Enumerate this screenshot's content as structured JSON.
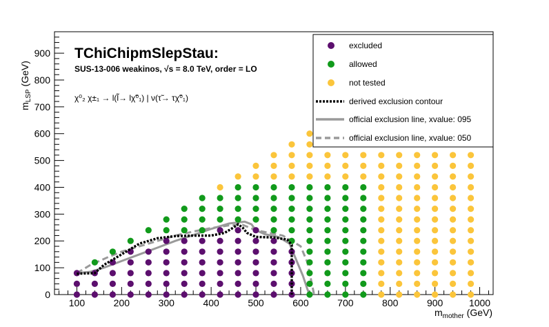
{
  "chart_data": {
    "type": "scatter",
    "title": "TChiChipmSlepStau:",
    "subtitle": "SUS-13-006  weakinos,  √s =  8.0 TeV, order =  LO",
    "process_label": "χ⁰₂ χ±₁  → l(l̃→ lχ̃⁰₁) | ν(τ̃→ τχ̃⁰₁)",
    "xlabel": "m_mother (GeV)",
    "xlabel_main": "m",
    "xlabel_sub": "mother",
    "xlabel_unit": " (GeV)",
    "ylabel": "m_LSP (GeV)",
    "ylabel_main": "m",
    "ylabel_sub": "LSP",
    "ylabel_unit": " (GeV)",
    "xlim": [
      50,
      1030
    ],
    "ylim": [
      0,
      980
    ],
    "xticks": [
      100,
      200,
      300,
      400,
      500,
      600,
      700,
      800,
      900,
      1000
    ],
    "yticks": [
      0,
      100,
      200,
      300,
      400,
      500,
      600,
      700,
      800,
      900
    ],
    "legend_position": "top-right",
    "legend": [
      {
        "label": "excluded",
        "kind": "marker",
        "color": "#5c0f6e"
      },
      {
        "label": "allowed",
        "kind": "marker",
        "color": "#119a1b"
      },
      {
        "label": "not tested",
        "kind": "marker",
        "color": "#fbc53b"
      },
      {
        "label": "derived exclusion contour",
        "kind": "line",
        "color": "#000000",
        "dash": "dotted"
      },
      {
        "label": " official exclusion line, xvalue: 095",
        "kind": "line",
        "color": "#9a9a9a",
        "dash": "solid"
      },
      {
        "label": " official exclusion line, xvalue: 050",
        "kind": "line",
        "color": "#9a9a9a",
        "dash": "dashed"
      }
    ],
    "points": {
      "excluded": [
        [
          100,
          0
        ],
        [
          100,
          40
        ],
        [
          100,
          80
        ],
        [
          140,
          0
        ],
        [
          140,
          40
        ],
        [
          140,
          80
        ],
        [
          180,
          0
        ],
        [
          180,
          40
        ],
        [
          180,
          80
        ],
        [
          180,
          120
        ],
        [
          220,
          0
        ],
        [
          220,
          40
        ],
        [
          220,
          80
        ],
        [
          220,
          120
        ],
        [
          220,
          160
        ],
        [
          260,
          0
        ],
        [
          260,
          40
        ],
        [
          260,
          80
        ],
        [
          260,
          120
        ],
        [
          260,
          160
        ],
        [
          300,
          0
        ],
        [
          300,
          40
        ],
        [
          300,
          80
        ],
        [
          300,
          120
        ],
        [
          300,
          160
        ],
        [
          300,
          200
        ],
        [
          340,
          0
        ],
        [
          340,
          40
        ],
        [
          340,
          80
        ],
        [
          340,
          120
        ],
        [
          340,
          160
        ],
        [
          340,
          200
        ],
        [
          380,
          0
        ],
        [
          380,
          40
        ],
        [
          380,
          80
        ],
        [
          380,
          120
        ],
        [
          380,
          160
        ],
        [
          380,
          200
        ],
        [
          420,
          0
        ],
        [
          420,
          40
        ],
        [
          420,
          80
        ],
        [
          420,
          120
        ],
        [
          420,
          160
        ],
        [
          420,
          200
        ],
        [
          420,
          240
        ],
        [
          460,
          0
        ],
        [
          460,
          40
        ],
        [
          460,
          80
        ],
        [
          460,
          120
        ],
        [
          460,
          160
        ],
        [
          460,
          200
        ],
        [
          460,
          240
        ],
        [
          500,
          0
        ],
        [
          500,
          40
        ],
        [
          500,
          80
        ],
        [
          500,
          120
        ],
        [
          500,
          160
        ],
        [
          500,
          200
        ],
        [
          500,
          240
        ],
        [
          540,
          0
        ],
        [
          540,
          40
        ],
        [
          540,
          80
        ],
        [
          540,
          120
        ],
        [
          540,
          160
        ],
        [
          540,
          200
        ],
        [
          580,
          0
        ],
        [
          580,
          40
        ],
        [
          580,
          80
        ],
        [
          580,
          120
        ],
        [
          580,
          160
        ]
      ],
      "allowed": [
        [
          140,
          120
        ],
        [
          180,
          160
        ],
        [
          220,
          200
        ],
        [
          260,
          240
        ],
        [
          300,
          240
        ],
        [
          300,
          280
        ],
        [
          340,
          240
        ],
        [
          340,
          280
        ],
        [
          340,
          320
        ],
        [
          380,
          240
        ],
        [
          380,
          280
        ],
        [
          380,
          320
        ],
        [
          380,
          360
        ],
        [
          420,
          280
        ],
        [
          420,
          320
        ],
        [
          420,
          360
        ],
        [
          460,
          280
        ],
        [
          460,
          320
        ],
        [
          460,
          360
        ],
        [
          460,
          400
        ],
        [
          500,
          280
        ],
        [
          500,
          320
        ],
        [
          500,
          360
        ],
        [
          500,
          400
        ],
        [
          540,
          240
        ],
        [
          540,
          280
        ],
        [
          540,
          320
        ],
        [
          540,
          360
        ],
        [
          540,
          400
        ],
        [
          580,
          200
        ],
        [
          580,
          240
        ],
        [
          580,
          280
        ],
        [
          580,
          320
        ],
        [
          580,
          360
        ],
        [
          580,
          400
        ],
        [
          620,
          0
        ],
        [
          620,
          40
        ],
        [
          620,
          80
        ],
        [
          620,
          120
        ],
        [
          620,
          160
        ],
        [
          620,
          200
        ],
        [
          620,
          240
        ],
        [
          620,
          280
        ],
        [
          620,
          320
        ],
        [
          620,
          360
        ],
        [
          620,
          400
        ],
        [
          660,
          0
        ],
        [
          660,
          40
        ],
        [
          660,
          80
        ],
        [
          660,
          120
        ],
        [
          660,
          160
        ],
        [
          660,
          200
        ],
        [
          660,
          240
        ],
        [
          660,
          280
        ],
        [
          660,
          320
        ],
        [
          660,
          360
        ],
        [
          660,
          400
        ],
        [
          700,
          0
        ],
        [
          700,
          40
        ],
        [
          700,
          80
        ],
        [
          700,
          120
        ],
        [
          700,
          160
        ],
        [
          700,
          200
        ],
        [
          700,
          240
        ],
        [
          700,
          280
        ],
        [
          700,
          320
        ],
        [
          700,
          360
        ],
        [
          700,
          400
        ],
        [
          740,
          0
        ],
        [
          740,
          40
        ],
        [
          740,
          80
        ],
        [
          740,
          120
        ],
        [
          740,
          160
        ],
        [
          740,
          200
        ],
        [
          740,
          240
        ],
        [
          740,
          280
        ],
        [
          740,
          320
        ],
        [
          740,
          360
        ],
        [
          740,
          400
        ]
      ],
      "not_tested": [
        [
          420,
          400
        ],
        [
          460,
          440
        ],
        [
          500,
          440
        ],
        [
          500,
          480
        ],
        [
          540,
          440
        ],
        [
          540,
          480
        ],
        [
          540,
          520
        ],
        [
          580,
          440
        ],
        [
          580,
          480
        ],
        [
          580,
          520
        ],
        [
          580,
          560
        ],
        [
          620,
          440
        ],
        [
          620,
          480
        ],
        [
          620,
          520
        ],
        [
          620,
          560
        ],
        [
          620,
          600
        ],
        [
          660,
          440
        ],
        [
          660,
          480
        ],
        [
          660,
          520
        ],
        [
          700,
          440
        ],
        [
          700,
          480
        ],
        [
          700,
          520
        ],
        [
          740,
          440
        ],
        [
          740,
          480
        ],
        [
          740,
          520
        ],
        [
          780,
          0
        ],
        [
          780,
          40
        ],
        [
          780,
          80
        ],
        [
          780,
          120
        ],
        [
          780,
          160
        ],
        [
          780,
          200
        ],
        [
          780,
          240
        ],
        [
          780,
          280
        ],
        [
          780,
          320
        ],
        [
          780,
          360
        ],
        [
          780,
          400
        ],
        [
          780,
          440
        ],
        [
          780,
          480
        ],
        [
          780,
          520
        ],
        [
          820,
          0
        ],
        [
          820,
          40
        ],
        [
          820,
          80
        ],
        [
          820,
          120
        ],
        [
          820,
          160
        ],
        [
          820,
          200
        ],
        [
          820,
          240
        ],
        [
          820,
          280
        ],
        [
          820,
          320
        ],
        [
          820,
          360
        ],
        [
          820,
          400
        ],
        [
          820,
          440
        ],
        [
          820,
          480
        ],
        [
          820,
          520
        ],
        [
          860,
          0
        ],
        [
          860,
          40
        ],
        [
          860,
          80
        ],
        [
          860,
          120
        ],
        [
          860,
          160
        ],
        [
          860,
          200
        ],
        [
          860,
          240
        ],
        [
          860,
          280
        ],
        [
          860,
          320
        ],
        [
          860,
          360
        ],
        [
          860,
          400
        ],
        [
          860,
          440
        ],
        [
          860,
          480
        ],
        [
          860,
          520
        ],
        [
          900,
          0
        ],
        [
          900,
          40
        ],
        [
          900,
          80
        ],
        [
          900,
          120
        ],
        [
          900,
          160
        ],
        [
          900,
          200
        ],
        [
          900,
          240
        ],
        [
          900,
          280
        ],
        [
          900,
          320
        ],
        [
          900,
          360
        ],
        [
          900,
          400
        ],
        [
          900,
          440
        ],
        [
          900,
          480
        ],
        [
          900,
          520
        ],
        [
          940,
          0
        ],
        [
          940,
          40
        ],
        [
          940,
          80
        ],
        [
          940,
          120
        ],
        [
          940,
          160
        ],
        [
          940,
          200
        ],
        [
          940,
          240
        ],
        [
          940,
          280
        ],
        [
          940,
          320
        ],
        [
          940,
          360
        ],
        [
          940,
          400
        ],
        [
          940,
          440
        ],
        [
          940,
          480
        ],
        [
          940,
          520
        ],
        [
          980,
          0
        ],
        [
          980,
          40
        ],
        [
          980,
          80
        ],
        [
          980,
          120
        ],
        [
          980,
          160
        ],
        [
          980,
          200
        ],
        [
          980,
          240
        ],
        [
          980,
          280
        ],
        [
          980,
          320
        ],
        [
          980,
          360
        ],
        [
          980,
          400
        ],
        [
          980,
          440
        ],
        [
          980,
          480
        ],
        [
          980,
          520
        ]
      ]
    },
    "lines": {
      "derived_contour": [
        [
          100,
          78
        ],
        [
          140,
          80
        ],
        [
          160,
          110
        ],
        [
          200,
          150
        ],
        [
          240,
          190
        ],
        [
          280,
          210
        ],
        [
          320,
          218
        ],
        [
          360,
          220
        ],
        [
          400,
          220
        ],
        [
          430,
          230
        ],
        [
          450,
          250
        ],
        [
          460,
          262
        ],
        [
          470,
          250
        ],
        [
          480,
          230
        ],
        [
          500,
          215
        ],
        [
          540,
          213
        ],
        [
          570,
          205
        ],
        [
          580,
          185
        ],
        [
          580,
          0
        ]
      ],
      "official_095": [
        [
          100,
          80
        ],
        [
          130,
          85
        ],
        [
          160,
          100
        ],
        [
          200,
          125
        ],
        [
          240,
          150
        ],
        [
          280,
          175
        ],
        [
          320,
          200
        ],
        [
          360,
          222
        ],
        [
          400,
          245
        ],
        [
          440,
          265
        ],
        [
          475,
          272
        ],
        [
          490,
          262
        ],
        [
          500,
          240
        ],
        [
          520,
          225
        ],
        [
          550,
          215
        ],
        [
          575,
          190
        ],
        [
          590,
          130
        ],
        [
          605,
          70
        ],
        [
          615,
          20
        ],
        [
          620,
          0
        ]
      ],
      "official_050": [
        [
          100,
          80
        ],
        [
          130,
          110
        ],
        [
          170,
          140
        ],
        [
          200,
          160
        ],
        [
          240,
          180
        ],
        [
          280,
          200
        ],
        [
          320,
          220
        ],
        [
          360,
          235
        ],
        [
          400,
          248
        ],
        [
          440,
          258
        ],
        [
          470,
          260
        ],
        [
          500,
          240
        ],
        [
          530,
          230
        ],
        [
          560,
          220
        ],
        [
          580,
          200
        ],
        [
          600,
          180
        ],
        [
          615,
          120
        ],
        [
          625,
          40
        ],
        [
          630,
          0
        ]
      ]
    },
    "colors": {
      "excluded": "#5c0f6e",
      "allowed": "#119a1b",
      "not_tested": "#fbc53b",
      "derived_contour": "#000000",
      "official": "#9a9a9a"
    }
  }
}
